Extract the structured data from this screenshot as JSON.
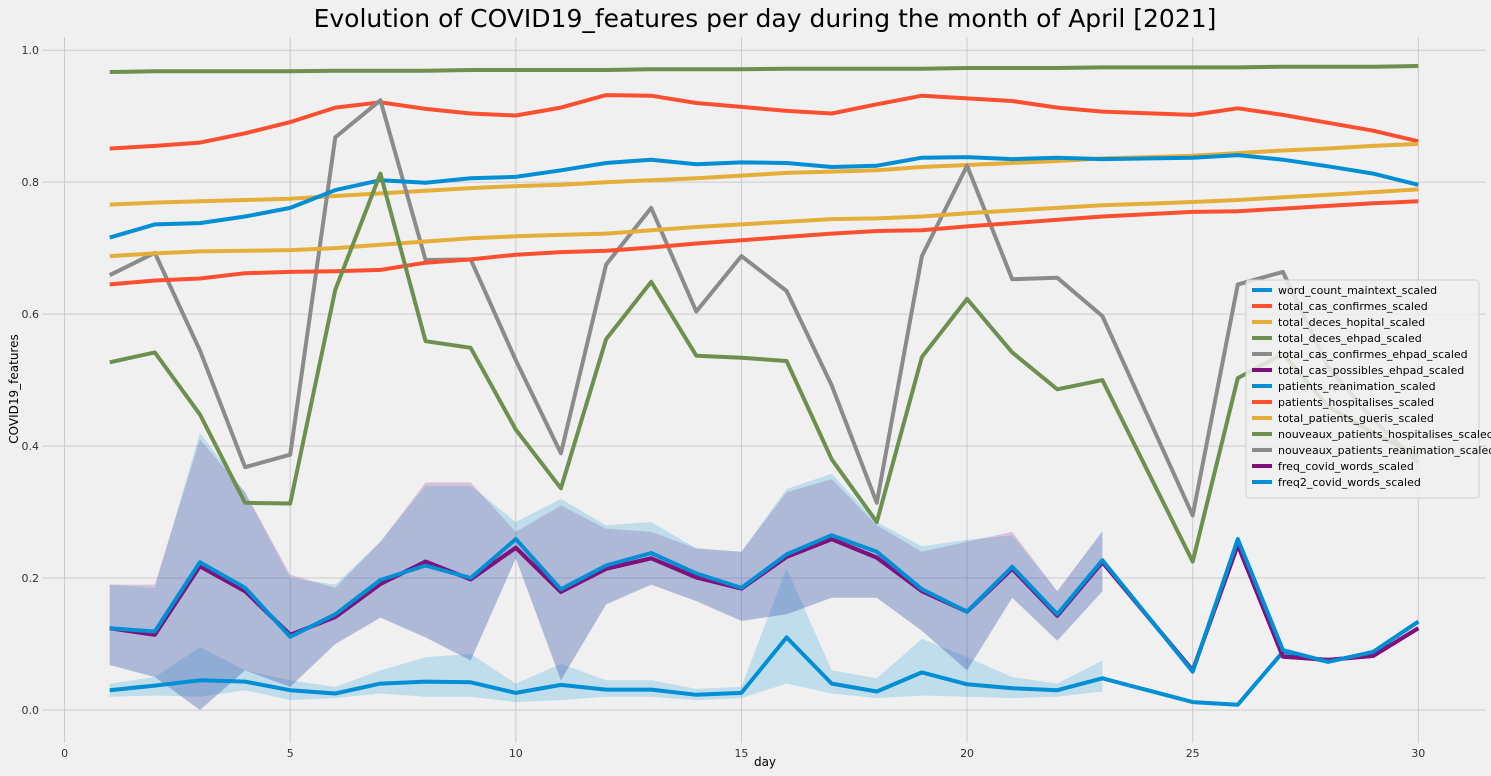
{
  "chart_data": {
    "type": "line",
    "title": "Evolution of COVID19_features per day during the month of April  [2021]",
    "xlabel": "day",
    "ylabel": "COVID19_features",
    "xlim": [
      -0.5,
      31.5
    ],
    "ylim": [
      -0.05,
      1.02
    ],
    "xticks": [
      0,
      5,
      10,
      15,
      20,
      25,
      30
    ],
    "yticks": [
      0.0,
      0.2,
      0.4,
      0.6,
      0.8,
      1.0
    ],
    "xtick_labels": [
      "0",
      "5",
      "10",
      "15",
      "20",
      "25",
      "30"
    ],
    "ytick_labels": [
      "0.0",
      "0.2",
      "0.4",
      "0.6",
      "0.8",
      "1.0"
    ],
    "grid": true,
    "legend_position": "right",
    "series": [
      {
        "name": "word_count_maintext_scaled",
        "color": "#008fd5",
        "x": [
          1,
          2,
          3,
          4,
          5,
          6,
          7,
          8,
          9,
          10,
          11,
          12,
          13,
          14,
          15,
          16,
          17,
          18,
          19,
          20,
          21,
          22,
          23,
          25,
          26,
          27,
          28,
          29,
          30
        ],
        "y": [
          0.03,
          0.037,
          0.045,
          0.043,
          0.03,
          0.025,
          0.04,
          0.043,
          0.042,
          0.026,
          0.038,
          0.031,
          0.031,
          0.023,
          0.026,
          0.11,
          0.04,
          0.028,
          0.057,
          0.039,
          0.033,
          0.03,
          0.048,
          0.012,
          0.008,
          0.088,
          0.073,
          0.088,
          0.134
        ],
        "band_lower": [
          0.02,
          0.022,
          0.02,
          0.03,
          0.015,
          0.018,
          0.025,
          0.02,
          0.02,
          0.012,
          0.015,
          0.02,
          0.02,
          0.015,
          0.018,
          0.04,
          0.025,
          0.018,
          0.022,
          0.02,
          0.018,
          0.02,
          0.028,
          null,
          null,
          null,
          null,
          null,
          null
        ],
        "band_upper": [
          0.04,
          0.05,
          0.095,
          0.06,
          0.045,
          0.035,
          0.06,
          0.08,
          0.085,
          0.04,
          0.07,
          0.045,
          0.045,
          0.032,
          0.035,
          0.215,
          0.06,
          0.048,
          0.108,
          0.08,
          0.05,
          0.04,
          0.075,
          null,
          null,
          null,
          null,
          null,
          null
        ]
      },
      {
        "name": "total_cas_confirmes_scaled",
        "color": "#fc4f30",
        "x": [
          1,
          2,
          3,
          4,
          5,
          6,
          7,
          8,
          9,
          10,
          11,
          12,
          13,
          14,
          15,
          16,
          17,
          18,
          19,
          20,
          21,
          22,
          23,
          25,
          26,
          27,
          28,
          29,
          30
        ],
        "y": [
          0.851,
          0.855,
          0.86,
          0.874,
          0.891,
          0.913,
          0.921,
          0.911,
          0.904,
          0.901,
          0.913,
          0.932,
          0.931,
          0.92,
          0.914,
          0.908,
          0.904,
          0.918,
          0.931,
          0.927,
          0.923,
          0.913,
          0.907,
          0.902,
          0.912,
          0.902,
          0.89,
          0.878,
          0.862
        ]
      },
      {
        "name": "total_deces_hopital_scaled",
        "color": "#e5ae38",
        "x": [
          1,
          2,
          3,
          4,
          5,
          6,
          7,
          8,
          9,
          10,
          11,
          12,
          13,
          14,
          15,
          16,
          17,
          18,
          19,
          20,
          21,
          22,
          23,
          25,
          26,
          27,
          28,
          29,
          30
        ],
        "y": [
          0.766,
          0.769,
          0.771,
          0.773,
          0.775,
          0.779,
          0.783,
          0.787,
          0.791,
          0.794,
          0.796,
          0.8,
          0.803,
          0.806,
          0.81,
          0.814,
          0.816,
          0.818,
          0.823,
          0.826,
          0.829,
          0.832,
          0.836,
          0.84,
          0.844,
          0.848,
          0.851,
          0.855,
          0.858
        ]
      },
      {
        "name": "total_deces_ehpad_scaled",
        "color": "#6d904f",
        "x": [
          1,
          2,
          3,
          4,
          5,
          6,
          7,
          8,
          9,
          10,
          11,
          12,
          13,
          14,
          15,
          16,
          17,
          18,
          19,
          20,
          21,
          22,
          23,
          25,
          26,
          27,
          28,
          29,
          30
        ],
        "y": [
          0.967,
          0.968,
          0.968,
          0.968,
          0.968,
          0.969,
          0.969,
          0.969,
          0.97,
          0.97,
          0.97,
          0.97,
          0.971,
          0.971,
          0.971,
          0.972,
          0.972,
          0.972,
          0.972,
          0.973,
          0.973,
          0.973,
          0.974,
          0.974,
          0.974,
          0.975,
          0.975,
          0.975,
          0.976
        ]
      },
      {
        "name": "total_cas_confirmes_ehpad_scaled",
        "color": "#8b8b8b",
        "x": [
          1,
          2,
          3,
          4,
          5,
          6,
          7,
          8,
          9,
          10,
          11,
          12,
          13,
          14,
          15,
          16,
          17,
          18,
          19,
          20,
          21,
          22,
          23,
          25,
          26,
          27,
          28,
          29,
          30
        ],
        "y": [
          0.659,
          0.693,
          0.545,
          0.368,
          0.387,
          0.868,
          0.924,
          0.682,
          0.683,
          0.53,
          0.389,
          0.675,
          0.761,
          0.604,
          0.688,
          0.635,
          0.492,
          0.314,
          0.688,
          0.825,
          0.653,
          0.655,
          0.597,
          0.295,
          0.645,
          0.664,
          0.52,
          0.44,
          0.375
        ]
      },
      {
        "name": "total_cas_possibles_ehpad_scaled",
        "color": "#810f7c",
        "x": [
          1,
          2,
          3,
          4,
          5,
          6,
          7,
          8,
          9,
          10,
          11,
          12,
          13,
          14,
          15,
          16,
          17,
          18,
          19,
          20,
          21,
          22,
          23,
          25,
          26,
          27,
          28,
          29,
          30
        ],
        "y": [
          0.124,
          0.114,
          0.218,
          0.18,
          0.114,
          0.141,
          0.191,
          0.225,
          0.198,
          0.246,
          0.179,
          0.214,
          0.23,
          0.201,
          0.184,
          0.232,
          0.259,
          0.231,
          0.18,
          0.149,
          0.214,
          0.143,
          0.224,
          0.06,
          0.25,
          0.081,
          0.076,
          0.082,
          0.124
        ],
        "band_lower": [
          0.068,
          0.05,
          0.0,
          0.06,
          0.035,
          0.1,
          0.14,
          0.11,
          0.075,
          0.23,
          0.045,
          0.16,
          0.19,
          0.165,
          0.135,
          0.145,
          0.17,
          0.17,
          0.12,
          0.06,
          0.17,
          0.105,
          0.18,
          null,
          null,
          null,
          null,
          null,
          null
        ],
        "band_upper": [
          0.19,
          0.19,
          0.41,
          0.33,
          0.205,
          0.185,
          0.255,
          0.345,
          0.345,
          0.27,
          0.31,
          0.275,
          0.27,
          0.245,
          0.24,
          0.33,
          0.35,
          0.28,
          0.24,
          0.255,
          0.27,
          0.18,
          0.27,
          null,
          null,
          null,
          null,
          null,
          null
        ]
      },
      {
        "name": "patients_reanimation_scaled",
        "color": "#008fd5",
        "x": [
          1,
          2,
          3,
          4,
          5,
          6,
          7,
          8,
          9,
          10,
          11,
          12,
          13,
          14,
          15,
          16,
          17,
          18,
          19,
          20,
          21,
          22,
          23,
          25,
          26,
          27,
          28,
          29,
          30
        ],
        "y": [
          0.716,
          0.736,
          0.738,
          0.748,
          0.761,
          0.788,
          0.803,
          0.799,
          0.806,
          0.808,
          0.818,
          0.829,
          0.834,
          0.827,
          0.83,
          0.829,
          0.823,
          0.825,
          0.837,
          0.838,
          0.835,
          0.837,
          0.835,
          0.837,
          0.841,
          0.834,
          0.824,
          0.813,
          0.796
        ]
      },
      {
        "name": "patients_hospitalises_scaled",
        "color": "#fc4f30",
        "x": [
          1,
          2,
          3,
          4,
          5,
          6,
          7,
          8,
          9,
          10,
          11,
          12,
          13,
          14,
          15,
          16,
          17,
          18,
          19,
          20,
          21,
          22,
          23,
          25,
          26,
          27,
          28,
          29,
          30
        ],
        "y": [
          0.645,
          0.651,
          0.654,
          0.662,
          0.664,
          0.665,
          0.667,
          0.678,
          0.683,
          0.69,
          0.694,
          0.696,
          0.701,
          0.707,
          0.712,
          0.717,
          0.722,
          0.726,
          0.727,
          0.733,
          0.738,
          0.743,
          0.748,
          0.755,
          0.756,
          0.76,
          0.764,
          0.768,
          0.771
        ]
      },
      {
        "name": "total_patients_gueris_scaled",
        "color": "#e5ae38",
        "x": [
          1,
          2,
          3,
          4,
          5,
          6,
          7,
          8,
          9,
          10,
          11,
          12,
          13,
          14,
          15,
          16,
          17,
          18,
          19,
          20,
          21,
          22,
          23,
          25,
          26,
          27,
          28,
          29,
          30
        ],
        "y": [
          0.688,
          0.692,
          0.695,
          0.696,
          0.697,
          0.7,
          0.705,
          0.71,
          0.715,
          0.718,
          0.72,
          0.722,
          0.727,
          0.732,
          0.736,
          0.74,
          0.744,
          0.745,
          0.748,
          0.753,
          0.757,
          0.761,
          0.765,
          0.77,
          0.773,
          0.777,
          0.781,
          0.785,
          0.789
        ]
      },
      {
        "name": "nouveaux_patients_hospitalises_scaled",
        "color": "#6d904f",
        "x": [
          1,
          2,
          3,
          4,
          5,
          6,
          7,
          8,
          9,
          10,
          11,
          12,
          13,
          14,
          15,
          16,
          17,
          18,
          19,
          20,
          21,
          22,
          23,
          25,
          26,
          27,
          28,
          29,
          30
        ],
        "y": [
          0.527,
          0.542,
          0.448,
          0.314,
          0.313,
          0.637,
          0.813,
          0.559,
          0.549,
          0.425,
          0.336,
          0.562,
          0.649,
          0.537,
          0.534,
          0.529,
          0.38,
          0.285,
          0.535,
          0.623,
          0.542,
          0.486,
          0.5,
          0.225,
          0.503,
          0.54,
          0.46,
          0.42,
          0.385
        ]
      },
      {
        "name": "nouveaux_patients_reanimation_scaled",
        "color": "#8b8b8b",
        "x": [],
        "y": []
      },
      {
        "name": "freq_covid_words_scaled",
        "color": "#810f7c",
        "x": [
          1,
          2,
          3,
          4,
          5,
          6,
          7,
          8,
          9,
          10,
          11,
          12,
          13,
          14,
          15,
          16,
          17,
          18,
          19,
          20,
          21,
          22,
          23,
          25,
          26,
          27,
          28,
          29,
          30
        ],
        "y": [
          0.124,
          0.114,
          0.218,
          0.18,
          0.114,
          0.141,
          0.191,
          0.225,
          0.198,
          0.246,
          0.179,
          0.214,
          0.23,
          0.201,
          0.184,
          0.232,
          0.259,
          0.231,
          0.18,
          0.149,
          0.214,
          0.143,
          0.224,
          0.06,
          0.25,
          0.081,
          0.076,
          0.082,
          0.124
        ]
      },
      {
        "name": "freq2_covid_words_scaled",
        "color": "#008fd5",
        "x": [
          1,
          2,
          3,
          4,
          5,
          6,
          7,
          8,
          9,
          10,
          11,
          12,
          13,
          14,
          15,
          16,
          17,
          18,
          19,
          20,
          21,
          22,
          23,
          25,
          26,
          27,
          28,
          29,
          30
        ],
        "y": [
          0.124,
          0.119,
          0.224,
          0.185,
          0.111,
          0.145,
          0.197,
          0.219,
          0.2,
          0.259,
          0.183,
          0.219,
          0.238,
          0.207,
          0.185,
          0.236,
          0.265,
          0.24,
          0.183,
          0.149,
          0.217,
          0.145,
          0.227,
          0.058,
          0.259,
          0.091,
          0.073,
          0.088,
          0.134
        ],
        "band_lower": [
          0.068,
          0.05,
          0.0,
          0.06,
          0.035,
          0.1,
          0.14,
          0.11,
          0.075,
          0.23,
          0.045,
          0.16,
          0.19,
          0.165,
          0.135,
          0.145,
          0.17,
          0.17,
          0.12,
          0.06,
          0.17,
          0.105,
          0.18,
          null,
          null,
          null,
          null,
          null,
          null
        ],
        "band_upper": [
          0.19,
          0.185,
          0.42,
          0.33,
          0.2,
          0.19,
          0.255,
          0.34,
          0.34,
          0.285,
          0.32,
          0.28,
          0.285,
          0.245,
          0.24,
          0.335,
          0.358,
          0.285,
          0.248,
          0.258,
          0.265,
          0.18,
          0.272,
          null,
          null,
          null,
          null,
          null,
          null
        ]
      }
    ]
  }
}
